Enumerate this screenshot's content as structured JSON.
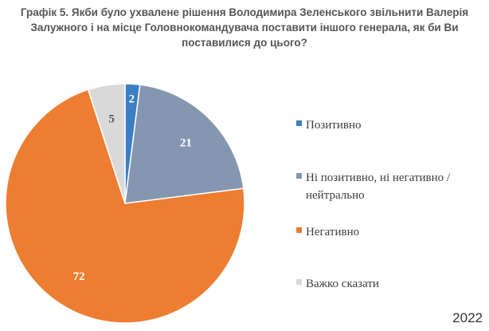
{
  "title_lines": [
    "Графік 5. Якби було ухвалене рішення Володимира Зеленського звільнити Валерія",
    "Залужного і на місце Головнокомандувача поставити іншого генерала, як би Ви",
    "поставилися до цього?"
  ],
  "year": "2022",
  "chart_data": {
    "type": "pie",
    "title": "Графік 5. Якби було ухвалене рішення Володимира Зеленського звільнити Валерія Залужного і на місце Головнокомандувача поставити іншого генерала, як би Ви поставилися до цього?",
    "start_angle_deg": 0,
    "direction": "clockwise",
    "legend_position": "right",
    "slices": [
      {
        "label": "Позитивно",
        "value": 2,
        "color": "#3a7fc1",
        "label_color": "#ffffff"
      },
      {
        "label": "Ні позитивно, ні негативно / нейтрально",
        "value": 21,
        "color": "#8496b0",
        "label_color": "#ffffff"
      },
      {
        "label": "Негативно",
        "value": 72,
        "color": "#ed7d31",
        "label_color": "#ffffff"
      },
      {
        "label": "Важко сказати",
        "value": 5,
        "color": "#d9d9d9",
        "label_color": "#595959"
      }
    ]
  },
  "legend": [
    {
      "lines": [
        "Позитивно"
      ]
    },
    {
      "lines": [
        "Ні позитивно, ні негативно /",
        "нейтрально"
      ]
    },
    {
      "lines": [
        "Негативно"
      ]
    },
    {
      "lines": [
        "Важко сказати"
      ]
    }
  ]
}
